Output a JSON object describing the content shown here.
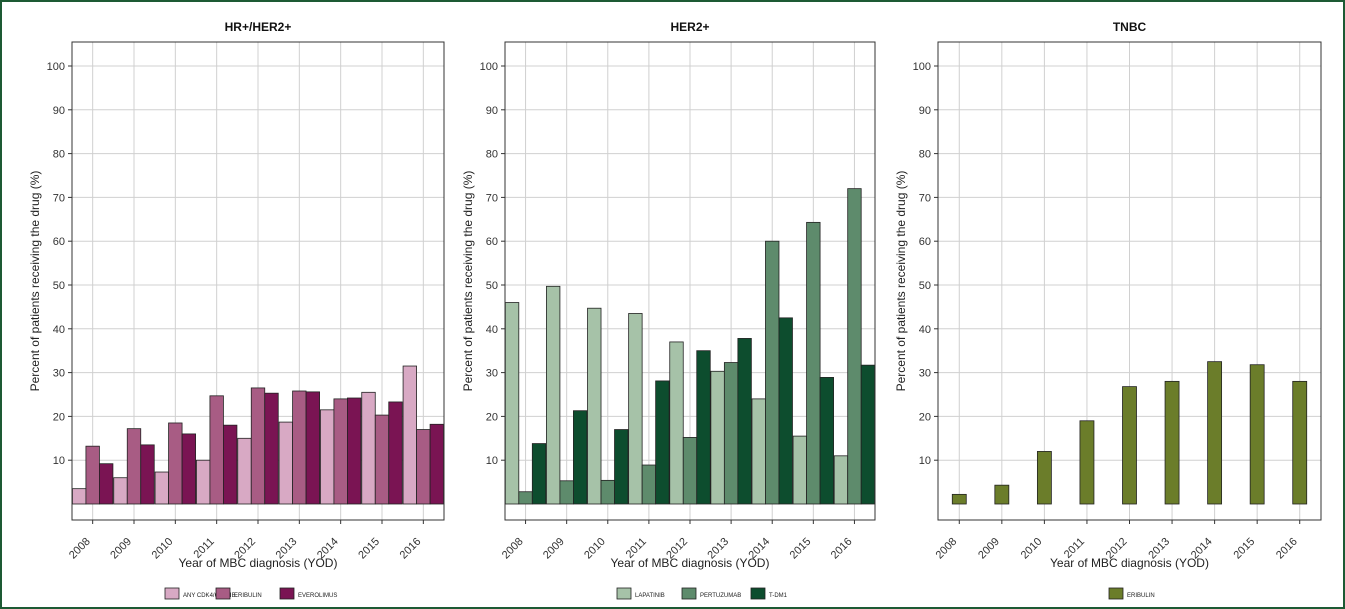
{
  "colors": {
    "frame": "#1d5a34",
    "grid": "#d0d0d0",
    "axis": "#333333"
  },
  "chart_data": [
    {
      "type": "bar",
      "title": "HR+/HER2+",
      "xlabel": "Year of MBC diagnosis (YOD)",
      "ylabel": "Percent of patients receiving the drug (%)",
      "ylim": [
        0,
        100
      ],
      "yticks": [
        10,
        20,
        30,
        40,
        50,
        60,
        70,
        80,
        90,
        100
      ],
      "grid": true,
      "legend_position": "bottom",
      "categories": [
        "2008",
        "2009",
        "2010",
        "2011",
        "2012",
        "2013",
        "2014",
        "2015",
        "2016"
      ],
      "series": [
        {
          "name": "ANY CDK4/6 INHIB.",
          "color": "#d8a9c4",
          "values": [
            3.5,
            6,
            7.3,
            10,
            15,
            18.7,
            21.5,
            25.5,
            31.5
          ]
        },
        {
          "name": "ERIBULIN",
          "color": "#a85c84",
          "values": [
            13.2,
            17.2,
            18.5,
            24.7,
            26.5,
            25.8,
            24,
            20.3,
            17
          ]
        },
        {
          "name": "EVEROLIMUS",
          "color": "#7a1453",
          "values": [
            9.2,
            13.5,
            16,
            18,
            25.3,
            25.6,
            24.2,
            23.3,
            18.2
          ]
        }
      ]
    },
    {
      "type": "bar",
      "title": "HER2+",
      "xlabel": "Year of MBC diagnosis (YOD)",
      "ylabel": "Percent of patients receiving the drug (%)",
      "ylim": [
        0,
        100
      ],
      "yticks": [
        10,
        20,
        30,
        40,
        50,
        60,
        70,
        80,
        90,
        100
      ],
      "grid": true,
      "legend_position": "bottom",
      "categories": [
        "2008",
        "2009",
        "2010",
        "2011",
        "2012",
        "2013",
        "2014",
        "2015",
        "2016"
      ],
      "series": [
        {
          "name": "LAPATINIB",
          "color": "#a6c2a8",
          "values": [
            46,
            49.7,
            44.7,
            43.5,
            37,
            30.3,
            24,
            15.5,
            11
          ]
        },
        {
          "name": "PERTUZUMAB",
          "color": "#5e8b6c",
          "values": [
            2.8,
            5.3,
            5.4,
            8.9,
            15.2,
            32.3,
            60,
            64.3,
            72
          ]
        },
        {
          "name": "T-DM1",
          "color": "#0d4d2e",
          "values": [
            13.8,
            21.3,
            17,
            28.1,
            35,
            37.8,
            42.5,
            28.9,
            31.7
          ]
        }
      ]
    },
    {
      "type": "bar",
      "title": "TNBC",
      "xlabel": "Year of MBC diagnosis (YOD)",
      "ylabel": "Percent of patients receiving the drug (%)",
      "ylim": [
        0,
        100
      ],
      "yticks": [
        10,
        20,
        30,
        40,
        50,
        60,
        70,
        80,
        90,
        100
      ],
      "grid": true,
      "legend_position": "bottom",
      "categories": [
        "2008",
        "2009",
        "2010",
        "2011",
        "2012",
        "2013",
        "2014",
        "2015",
        "2016"
      ],
      "series": [
        {
          "name": "ERIBULIN",
          "color": "#6b7d2a",
          "values": [
            2.2,
            4.3,
            12,
            19,
            26.8,
            28,
            32.5,
            31.8,
            28
          ]
        }
      ]
    }
  ]
}
